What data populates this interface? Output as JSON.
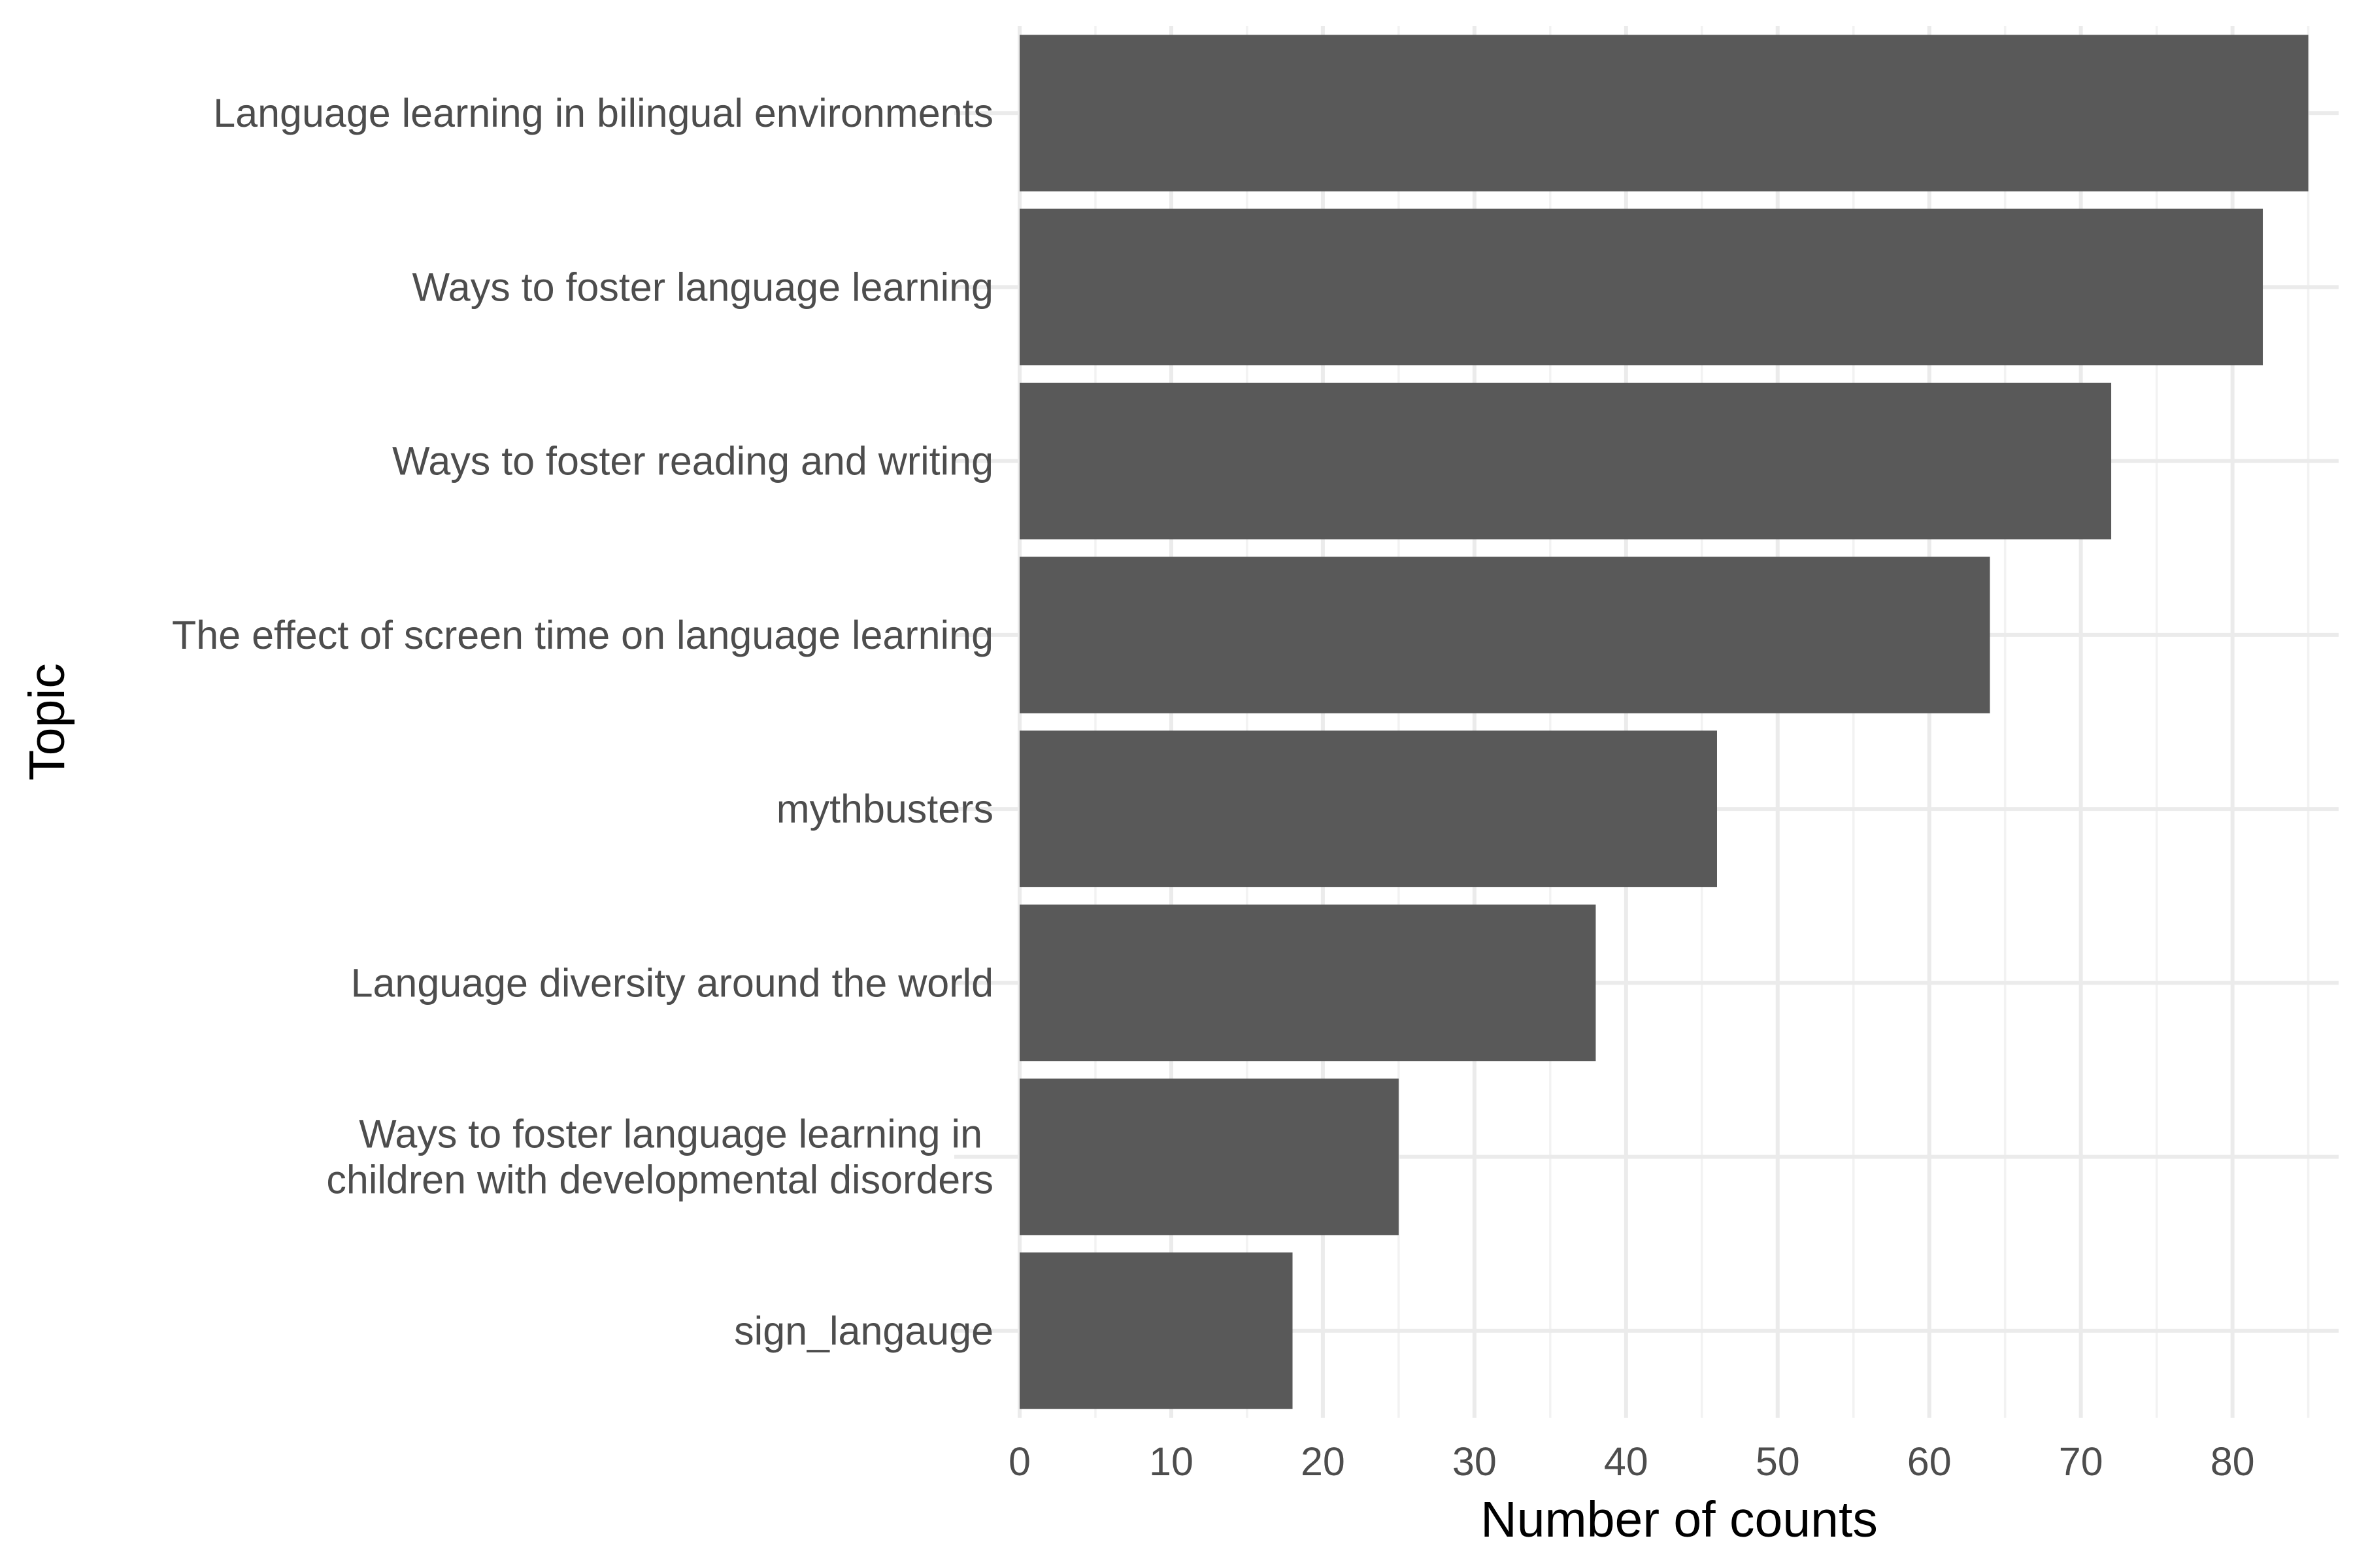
{
  "chart_data": {
    "type": "bar",
    "orientation": "horizontal",
    "categories": [
      "Language learning in bilingual environments",
      "Ways to foster language learning",
      "Ways to foster reading and writing",
      "The effect of screen time on language learning",
      "mythbusters",
      "Language diversity around the world",
      "Ways to foster language learning in \nchildren with developmental disorders",
      "sign_langauge"
    ],
    "values": [
      85,
      82,
      72,
      64,
      46,
      38,
      25,
      18
    ],
    "xlabel": "Number of counts",
    "ylabel": "Topic",
    "xlim": [
      0,
      87
    ],
    "x_ticks": [
      0,
      10,
      20,
      30,
      40,
      50,
      60,
      70,
      80
    ],
    "grid": true,
    "legend": "none",
    "colors": {
      "bar": "#595959",
      "grid_major": "#ebebeb",
      "grid_minor": "#f2f2f2",
      "tick_text": "#4d4d4d",
      "title_text": "#000000"
    }
  }
}
